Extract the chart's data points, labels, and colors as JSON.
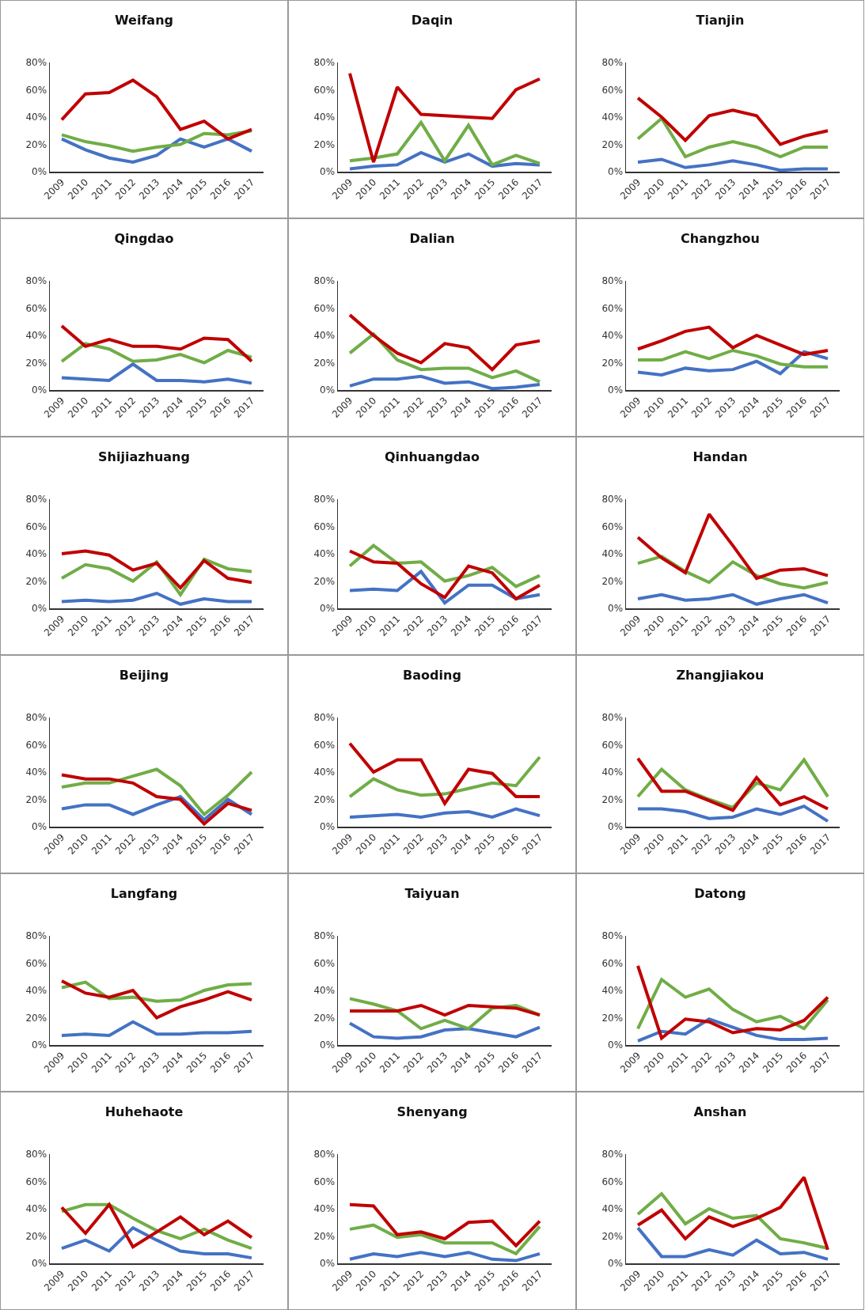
{
  "chart_data": [
    {
      "type": "line",
      "title": "Weifang",
      "categories": [
        "2009",
        "2010",
        "2011",
        "2012",
        "2013",
        "2014",
        "2015",
        "2016",
        "2017"
      ],
      "ylim": [
        0,
        80
      ],
      "yticks": [
        {
          "value": 0,
          "label": "0%"
        },
        {
          "value": 20,
          "label": "20%"
        },
        {
          "value": 40,
          "label": "40%"
        },
        {
          "value": 60,
          "label": "60%"
        },
        {
          "value": 80,
          "label": "80%"
        }
      ],
      "marker": "none",
      "series": [
        {
          "color": "#4472c4",
          "values": [
            24,
            16,
            10,
            7,
            12,
            24,
            18,
            24,
            15
          ]
        },
        {
          "color": "#70ad47",
          "values": [
            27,
            22,
            19,
            15,
            18,
            20,
            28,
            27,
            30
          ]
        },
        {
          "color": "#c00000",
          "values": [
            38,
            57,
            58,
            67,
            55,
            31,
            37,
            24,
            31
          ]
        }
      ]
    },
    {
      "type": "line",
      "title": "Daqin",
      "categories": [
        "2009",
        "2010",
        "2011",
        "2012",
        "2013",
        "2014",
        "2015",
        "2016",
        "2017"
      ],
      "ylim": [
        0,
        80
      ],
      "yticks": [
        {
          "value": 0,
          "label": "0%"
        },
        {
          "value": 20,
          "label": "20%"
        },
        {
          "value": 40,
          "label": "40%"
        },
        {
          "value": 60,
          "label": "60%"
        },
        {
          "value": 80,
          "label": "80%"
        }
      ],
      "marker": "none",
      "series": [
        {
          "color": "#4472c4",
          "values": [
            2,
            4,
            5,
            14,
            7,
            13,
            4,
            6,
            5
          ]
        },
        {
          "color": "#70ad47",
          "values": [
            8,
            10,
            13,
            36,
            8,
            34,
            5,
            12,
            6
          ]
        },
        {
          "color": "#c00000",
          "values": [
            72,
            7,
            62,
            42,
            41,
            40,
            39,
            60,
            68
          ]
        }
      ]
    },
    {
      "type": "line",
      "title": "Tianjin",
      "categories": [
        "2009",
        "2010",
        "2011",
        "2012",
        "2013",
        "2014",
        "2015",
        "2016",
        "2017"
      ],
      "ylim": [
        0,
        80
      ],
      "yticks": [
        {
          "value": 0,
          "label": "0%"
        },
        {
          "value": 20,
          "label": "20%"
        },
        {
          "value": 40,
          "label": "40%"
        },
        {
          "value": 60,
          "label": "60%"
        },
        {
          "value": 80,
          "label": "80%"
        }
      ],
      "marker": "none",
      "series": [
        {
          "color": "#4472c4",
          "values": [
            7,
            9,
            3,
            5,
            8,
            5,
            1,
            2,
            2
          ]
        },
        {
          "color": "#70ad47",
          "values": [
            24,
            39,
            11,
            18,
            22,
            18,
            11,
            18,
            18
          ]
        },
        {
          "color": "#c00000",
          "values": [
            54,
            40,
            23,
            41,
            45,
            41,
            20,
            26,
            30
          ]
        }
      ]
    },
    {
      "type": "line",
      "title": "Qingdao",
      "categories": [
        "2009",
        "2010",
        "2011",
        "2012",
        "2013",
        "2014",
        "2015",
        "2016",
        "2017"
      ],
      "ylim": [
        0,
        80
      ],
      "yticks": [
        {
          "value": 0,
          "label": "0%"
        },
        {
          "value": 20,
          "label": "20%"
        },
        {
          "value": 40,
          "label": "40%"
        },
        {
          "value": 60,
          "label": "60%"
        },
        {
          "value": 80,
          "label": "80%"
        }
      ],
      "marker": "none",
      "series": [
        {
          "color": "#4472c4",
          "values": [
            9,
            8,
            7,
            19,
            7,
            7,
            6,
            8,
            5
          ]
        },
        {
          "color": "#70ad47",
          "values": [
            21,
            34,
            30,
            21,
            22,
            26,
            20,
            29,
            24
          ]
        },
        {
          "color": "#c00000",
          "values": [
            47,
            32,
            37,
            32,
            32,
            30,
            38,
            37,
            21
          ]
        }
      ]
    },
    {
      "type": "line",
      "title": "Dalian",
      "categories": [
        "2009",
        "2010",
        "2011",
        "2012",
        "2013",
        "2014",
        "2015",
        "2016",
        "2017"
      ],
      "ylim": [
        0,
        80
      ],
      "yticks": [
        {
          "value": 0,
          "label": "0%"
        },
        {
          "value": 20,
          "label": "20%"
        },
        {
          "value": 40,
          "label": "40%"
        },
        {
          "value": 60,
          "label": "60%"
        },
        {
          "value": 80,
          "label": "80%"
        }
      ],
      "marker": "none",
      "series": [
        {
          "color": "#4472c4",
          "values": [
            3,
            8,
            8,
            10,
            5,
            6,
            1,
            2,
            4
          ]
        },
        {
          "color": "#70ad47",
          "values": [
            27,
            41,
            22,
            15,
            16,
            16,
            9,
            14,
            6
          ]
        },
        {
          "color": "#c00000",
          "values": [
            55,
            40,
            27,
            20,
            34,
            31,
            15,
            33,
            36
          ]
        }
      ]
    },
    {
      "type": "line",
      "title": "Changzhou",
      "categories": [
        "2009",
        "2010",
        "2011",
        "2012",
        "2013",
        "2014",
        "2015",
        "2016",
        "2017"
      ],
      "ylim": [
        0,
        80
      ],
      "yticks": [
        {
          "value": 0,
          "label": "0%"
        },
        {
          "value": 20,
          "label": "20%"
        },
        {
          "value": 40,
          "label": "40%"
        },
        {
          "value": 60,
          "label": "60%"
        },
        {
          "value": 80,
          "label": "80%"
        }
      ],
      "marker": "none",
      "series": [
        {
          "color": "#4472c4",
          "values": [
            13,
            11,
            16,
            14,
            15,
            21,
            12,
            28,
            23
          ]
        },
        {
          "color": "#70ad47",
          "values": [
            22,
            22,
            28,
            23,
            29,
            25,
            19,
            17,
            17
          ]
        },
        {
          "color": "#c00000",
          "values": [
            30,
            36,
            43,
            46,
            31,
            40,
            33,
            26,
            29
          ]
        }
      ]
    },
    {
      "type": "line",
      "title": "Shijiazhuang",
      "categories": [
        "2009",
        "2010",
        "2011",
        "2012",
        "2013",
        "2014",
        "2015",
        "2016",
        "2017"
      ],
      "ylim": [
        0,
        80
      ],
      "yticks": [
        {
          "value": 0,
          "label": "0%"
        },
        {
          "value": 20,
          "label": "20%"
        },
        {
          "value": 40,
          "label": "40%"
        },
        {
          "value": 60,
          "label": "60%"
        },
        {
          "value": 80,
          "label": "80%"
        }
      ],
      "marker": "none",
      "series": [
        {
          "color": "#4472c4",
          "values": [
            5,
            6,
            5,
            6,
            11,
            3,
            7,
            5,
            5
          ]
        },
        {
          "color": "#70ad47",
          "values": [
            22,
            32,
            29,
            20,
            34,
            10,
            36,
            29,
            27
          ]
        },
        {
          "color": "#c00000",
          "values": [
            40,
            42,
            39,
            28,
            33,
            15,
            35,
            22,
            19
          ]
        }
      ]
    },
    {
      "type": "line",
      "title": "Qinhuangdao",
      "categories": [
        "2009",
        "2010",
        "2011",
        "2012",
        "2013",
        "2014",
        "2015",
        "2016",
        "2017"
      ],
      "ylim": [
        0,
        80
      ],
      "yticks": [
        {
          "value": 0,
          "label": "0%"
        },
        {
          "value": 20,
          "label": "20%"
        },
        {
          "value": 40,
          "label": "40%"
        },
        {
          "value": 60,
          "label": "60%"
        },
        {
          "value": 80,
          "label": "80%"
        }
      ],
      "marker": "none",
      "series": [
        {
          "color": "#4472c4",
          "values": [
            13,
            14,
            13,
            27,
            4,
            17,
            17,
            7,
            10
          ]
        },
        {
          "color": "#70ad47",
          "values": [
            31,
            46,
            33,
            34,
            20,
            24,
            30,
            16,
            24
          ]
        },
        {
          "color": "#c00000",
          "values": [
            42,
            34,
            33,
            18,
            8,
            31,
            26,
            7,
            17
          ]
        }
      ]
    },
    {
      "type": "line",
      "title": "Handan",
      "categories": [
        "2009",
        "2010",
        "2011",
        "2012",
        "2013",
        "2014",
        "2015",
        "2016",
        "2017"
      ],
      "ylim": [
        0,
        80
      ],
      "yticks": [
        {
          "value": 0,
          "label": "0%"
        },
        {
          "value": 20,
          "label": "20%"
        },
        {
          "value": 40,
          "label": "40%"
        },
        {
          "value": 60,
          "label": "60%"
        },
        {
          "value": 80,
          "label": "80%"
        }
      ],
      "marker": "none",
      "series": [
        {
          "color": "#4472c4",
          "values": [
            7,
            10,
            6,
            7,
            10,
            3,
            7,
            10,
            4
          ]
        },
        {
          "color": "#70ad47",
          "values": [
            33,
            38,
            27,
            19,
            34,
            24,
            18,
            15,
            19
          ]
        },
        {
          "color": "#c00000",
          "values": [
            52,
            37,
            26,
            69,
            46,
            22,
            28,
            29,
            24
          ]
        }
      ]
    },
    {
      "type": "line",
      "title": "Beijing",
      "categories": [
        "2009",
        "2010",
        "2011",
        "2012",
        "2013",
        "2014",
        "2015",
        "2016",
        "2017"
      ],
      "ylim": [
        0,
        80
      ],
      "yticks": [
        {
          "value": 0,
          "label": "0%"
        },
        {
          "value": 20,
          "label": "20%"
        },
        {
          "value": 40,
          "label": "40%"
        },
        {
          "value": 60,
          "label": "60%"
        },
        {
          "value": 80,
          "label": "80%"
        }
      ],
      "marker": "none",
      "series": [
        {
          "color": "#4472c4",
          "values": [
            13,
            16,
            16,
            9,
            16,
            22,
            5,
            20,
            9
          ]
        },
        {
          "color": "#70ad47",
          "values": [
            29,
            32,
            32,
            37,
            42,
            30,
            9,
            23,
            40
          ]
        },
        {
          "color": "#c00000",
          "values": [
            38,
            35,
            35,
            32,
            22,
            20,
            2,
            17,
            12
          ]
        }
      ]
    },
    {
      "type": "line",
      "title": "Baoding",
      "categories": [
        "2009",
        "2010",
        "2011",
        "2012",
        "2013",
        "2014",
        "2015",
        "2016",
        "2017"
      ],
      "ylim": [
        0,
        80
      ],
      "yticks": [
        {
          "value": 0,
          "label": "0%"
        },
        {
          "value": 20,
          "label": "20%"
        },
        {
          "value": 40,
          "label": "40%"
        },
        {
          "value": 60,
          "label": "60%"
        },
        {
          "value": 80,
          "label": "80%"
        }
      ],
      "marker": "none",
      "series": [
        {
          "color": "#4472c4",
          "values": [
            7,
            8,
            9,
            7,
            10,
            11,
            7,
            13,
            8
          ]
        },
        {
          "color": "#70ad47",
          "values": [
            22,
            35,
            27,
            23,
            24,
            28,
            32,
            30,
            51
          ]
        },
        {
          "color": "#c00000",
          "values": [
            61,
            40,
            49,
            49,
            17,
            42,
            39,
            22,
            22
          ]
        }
      ]
    },
    {
      "type": "line",
      "title": "Zhangjiakou",
      "categories": [
        "2009",
        "2010",
        "2011",
        "2012",
        "2013",
        "2014",
        "2015",
        "2016",
        "2017"
      ],
      "ylim": [
        0,
        80
      ],
      "yticks": [
        {
          "value": 0,
          "label": "0%"
        },
        {
          "value": 20,
          "label": "20%"
        },
        {
          "value": 40,
          "label": "40%"
        },
        {
          "value": 60,
          "label": "60%"
        },
        {
          "value": 80,
          "label": "80%"
        }
      ],
      "marker": "none",
      "series": [
        {
          "color": "#4472c4",
          "values": [
            13,
            13,
            11,
            6,
            7,
            13,
            9,
            15,
            4
          ]
        },
        {
          "color": "#70ad47",
          "values": [
            22,
            42,
            27,
            20,
            14,
            32,
            27,
            49,
            22
          ]
        },
        {
          "color": "#c00000",
          "values": [
            50,
            26,
            26,
            19,
            12,
            36,
            16,
            22,
            13
          ]
        }
      ]
    },
    {
      "type": "line",
      "title": "Langfang",
      "categories": [
        "2009",
        "2010",
        "2011",
        "2012",
        "2013",
        "2014",
        "2015",
        "2016",
        "2017"
      ],
      "ylim": [
        0,
        80
      ],
      "yticks": [
        {
          "value": 0,
          "label": "0%"
        },
        {
          "value": 20,
          "label": "20%"
        },
        {
          "value": 40,
          "label": "40%"
        },
        {
          "value": 60,
          "label": "60%"
        },
        {
          "value": 80,
          "label": "80%"
        }
      ],
      "marker": "none",
      "series": [
        {
          "color": "#4472c4",
          "values": [
            7,
            8,
            7,
            17,
            8,
            8,
            9,
            9,
            10
          ]
        },
        {
          "color": "#70ad47",
          "values": [
            42,
            46,
            34,
            35,
            32,
            33,
            40,
            44,
            45
          ]
        },
        {
          "color": "#c00000",
          "values": [
            47,
            38,
            35,
            40,
            20,
            28,
            33,
            39,
            33
          ]
        }
      ]
    },
    {
      "type": "line",
      "title": "Taiyuan",
      "categories": [
        "2009",
        "2010",
        "2011",
        "2012",
        "2013",
        "2014",
        "2015",
        "2016",
        "2017"
      ],
      "ylim": [
        0,
        80
      ],
      "yticks": [
        {
          "value": 0,
          "label": "0%"
        },
        {
          "value": 20,
          "label": "20%"
        },
        {
          "value": 40,
          "label": "40%"
        },
        {
          "value": 60,
          "label": "60%"
        },
        {
          "value": 80,
          "label": "80%"
        }
      ],
      "marker": "none",
      "series": [
        {
          "color": "#4472c4",
          "values": [
            16,
            6,
            5,
            6,
            11,
            12,
            9,
            6,
            13
          ]
        },
        {
          "color": "#70ad47",
          "values": [
            34,
            30,
            25,
            12,
            18,
            12,
            27,
            29,
            22
          ]
        },
        {
          "color": "#c00000",
          "values": [
            25,
            25,
            25,
            29,
            22,
            29,
            28,
            27,
            22
          ]
        }
      ]
    },
    {
      "type": "line",
      "title": "Datong",
      "categories": [
        "2009",
        "2010",
        "2011",
        "2012",
        "2013",
        "2014",
        "2015",
        "2016",
        "2017"
      ],
      "ylim": [
        0,
        80
      ],
      "yticks": [
        {
          "value": 0,
          "label": "0%"
        },
        {
          "value": 20,
          "label": "20%"
        },
        {
          "value": 40,
          "label": "40%"
        },
        {
          "value": 60,
          "label": "60%"
        },
        {
          "value": 80,
          "label": "80%"
        }
      ],
      "marker": "none",
      "series": [
        {
          "color": "#4472c4",
          "values": [
            3,
            10,
            8,
            19,
            13,
            7,
            4,
            4,
            5
          ]
        },
        {
          "color": "#70ad47",
          "values": [
            12,
            48,
            35,
            41,
            26,
            17,
            21,
            12,
            33
          ]
        },
        {
          "color": "#c00000",
          "values": [
            58,
            5,
            19,
            17,
            9,
            12,
            11,
            18,
            35
          ]
        }
      ]
    },
    {
      "type": "line",
      "title": "Huhehaote",
      "categories": [
        "2009",
        "2010",
        "2011",
        "2012",
        "2013",
        "2014",
        "2015",
        "2016",
        "2017"
      ],
      "ylim": [
        0,
        80
      ],
      "yticks": [
        {
          "value": 0,
          "label": "0%"
        },
        {
          "value": 20,
          "label": "20%"
        },
        {
          "value": 40,
          "label": "40%"
        },
        {
          "value": 60,
          "label": "60%"
        },
        {
          "value": 80,
          "label": "80%"
        }
      ],
      "marker": "none",
      "series": [
        {
          "color": "#4472c4",
          "values": [
            11,
            17,
            9,
            26,
            17,
            9,
            7,
            7,
            4
          ]
        },
        {
          "color": "#70ad47",
          "values": [
            38,
            43,
            43,
            33,
            24,
            18,
            25,
            17,
            11
          ]
        },
        {
          "color": "#c00000",
          "values": [
            41,
            22,
            43,
            12,
            23,
            34,
            21,
            31,
            19
          ]
        }
      ]
    },
    {
      "type": "line",
      "title": "Shenyang",
      "categories": [
        "2009",
        "2010",
        "2011",
        "2012",
        "2013",
        "2014",
        "2015",
        "2016",
        "2017"
      ],
      "ylim": [
        0,
        80
      ],
      "yticks": [
        {
          "value": 0,
          "label": "0%"
        },
        {
          "value": 20,
          "label": "20%"
        },
        {
          "value": 40,
          "label": "40%"
        },
        {
          "value": 60,
          "label": "60%"
        },
        {
          "value": 80,
          "label": "80%"
        }
      ],
      "marker": "none",
      "series": [
        {
          "color": "#4472c4",
          "values": [
            3,
            7,
            5,
            8,
            5,
            8,
            3,
            2,
            7
          ]
        },
        {
          "color": "#70ad47",
          "values": [
            25,
            28,
            19,
            21,
            15,
            15,
            15,
            7,
            27
          ]
        },
        {
          "color": "#c00000",
          "values": [
            43,
            42,
            21,
            23,
            18,
            30,
            31,
            13,
            31
          ]
        }
      ]
    },
    {
      "type": "line",
      "title": "Anshan",
      "categories": [
        "2009",
        "2010",
        "2011",
        "2012",
        "2013",
        "2014",
        "2015",
        "2016",
        "2017"
      ],
      "ylim": [
        0,
        80
      ],
      "yticks": [
        {
          "value": 0,
          "label": "0%"
        },
        {
          "value": 20,
          "label": "20%"
        },
        {
          "value": 40,
          "label": "40%"
        },
        {
          "value": 60,
          "label": "60%"
        },
        {
          "value": 80,
          "label": "80%"
        }
      ],
      "marker": "none",
      "series": [
        {
          "color": "#4472c4",
          "values": [
            26,
            5,
            5,
            10,
            6,
            17,
            7,
            8,
            3
          ]
        },
        {
          "color": "#70ad47",
          "values": [
            36,
            51,
            29,
            40,
            33,
            35,
            18,
            15,
            11
          ]
        },
        {
          "color": "#c00000",
          "values": [
            28,
            39,
            18,
            34,
            27,
            33,
            41,
            63,
            10
          ]
        }
      ]
    }
  ]
}
